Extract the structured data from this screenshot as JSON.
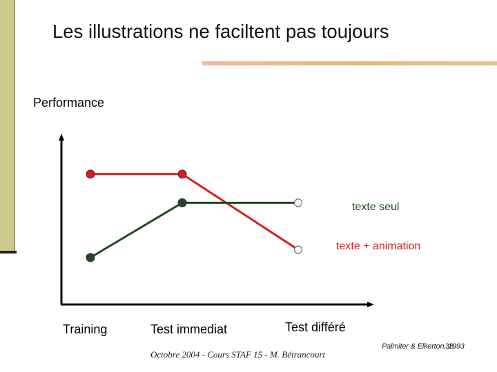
{
  "slide": {
    "title": "Les illustrations ne faciltent pas toujours",
    "footer": "Octobre 2004 - Cours STAF 15 - M. Bétrancourt",
    "credit": "Palmiter & Elkerton, 1993",
    "slide_number": "38"
  },
  "chart_data": {
    "type": "line",
    "ylabel": "Performance",
    "xlabel": "",
    "categories": [
      "Training",
      "Test immediat",
      "Test différé"
    ],
    "series": [
      {
        "name": "texte seul",
        "color": "#d91c1c",
        "values": [
          5.0,
          5.0,
          2.1
        ]
      },
      {
        "name": "texte + animation",
        "color": "#1e4a1e",
        "values": [
          1.8,
          3.9,
          3.9
        ]
      }
    ],
    "ylim": [
      0,
      6.5
    ],
    "grid": false,
    "legend": "inline-labels",
    "marker_style": "filled circles; last point of each series hollow"
  }
}
